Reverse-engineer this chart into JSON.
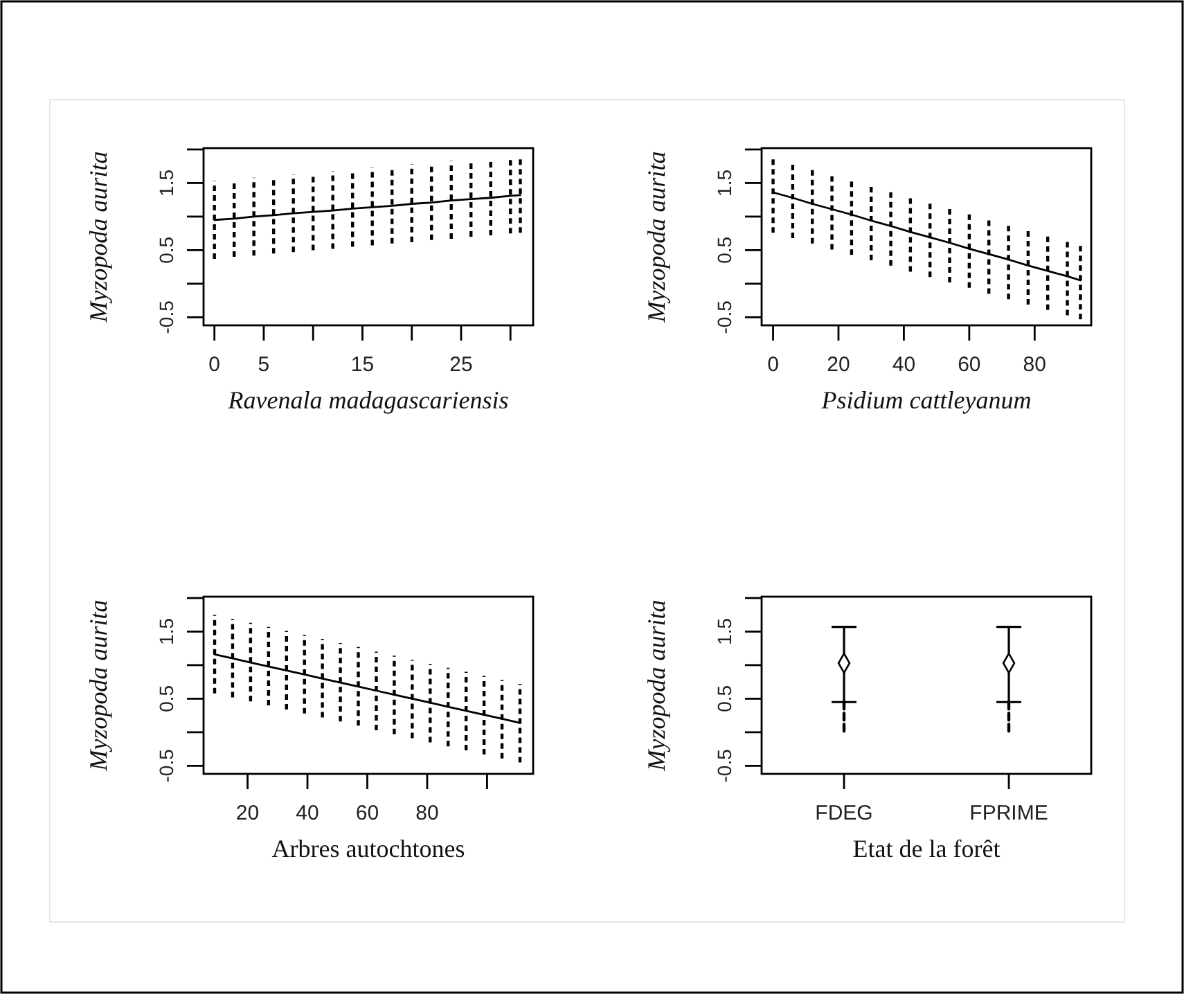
{
  "chart_data": [
    {
      "type": "line",
      "xlabel": "Ravenala madagascariensis",
      "ylabel": "Myzopoda aurita",
      "xlim": [
        -1.1,
        32.3
      ],
      "ylim": [
        -0.62,
        2.02
      ],
      "xticks": [
        0,
        5,
        {
          "value": 10,
          "label": null
        },
        15,
        {
          "value": 20,
          "label": null
        },
        25,
        {
          "value": 30,
          "label": null
        }
      ],
      "yticks": [
        -0.5,
        {
          "value": 0,
          "label": null
        },
        0.5,
        {
          "value": 1,
          "label": null
        },
        1.5,
        {
          "value": 2,
          "label": null
        }
      ],
      "x": [
        0,
        2,
        4,
        6,
        8,
        10,
        12,
        14,
        16,
        18,
        20,
        22,
        24,
        26,
        28,
        30,
        31
      ],
      "series": [
        {
          "color": "#000000",
          "values": [
            0.95,
            0.97,
            1.0,
            1.02,
            1.05,
            1.07,
            1.09,
            1.12,
            1.14,
            1.16,
            1.19,
            1.21,
            1.24,
            1.26,
            1.28,
            1.31,
            1.32
          ],
          "errors": [
            [
              0.37,
              1.53
            ],
            [
              0.4,
              1.55
            ],
            [
              0.42,
              1.58
            ],
            [
              0.45,
              1.6
            ],
            [
              0.47,
              1.63
            ],
            [
              0.5,
              1.65
            ],
            [
              0.52,
              1.68
            ],
            [
              0.55,
              1.7
            ],
            [
              0.57,
              1.73
            ],
            [
              0.6,
              1.75
            ],
            [
              0.62,
              1.78
            ],
            [
              0.65,
              1.8
            ],
            [
              0.67,
              1.83
            ],
            [
              0.7,
              1.85
            ],
            [
              0.72,
              1.87
            ],
            [
              0.75,
              1.9
            ],
            [
              0.76,
              1.91
            ]
          ]
        }
      ]
    },
    {
      "type": "line",
      "xlabel": "Psidium cattleyanum",
      "ylabel": "Myzopoda aurita",
      "xlim": [
        -3.5,
        97.3
      ],
      "ylim": [
        -0.62,
        2.02
      ],
      "xticks": [
        0,
        20,
        40,
        60,
        80
      ],
      "yticks": [
        -0.5,
        {
          "value": 0,
          "label": null
        },
        0.5,
        {
          "value": 1,
          "label": null
        },
        1.5,
        {
          "value": 2,
          "label": null
        }
      ],
      "x": [
        0,
        6,
        12,
        18,
        24,
        30,
        36,
        42,
        48,
        54,
        60,
        66,
        72,
        78,
        84,
        90,
        94
      ],
      "series": [
        {
          "color": "#000000",
          "values": [
            1.36,
            1.28,
            1.19,
            1.11,
            1.03,
            0.94,
            0.86,
            0.77,
            0.69,
            0.61,
            0.52,
            0.44,
            0.36,
            0.27,
            0.19,
            0.11,
            0.05
          ],
          "errors": [
            [
              0.76,
              1.91
            ],
            [
              0.68,
              1.83
            ],
            [
              0.6,
              1.74
            ],
            [
              0.51,
              1.66
            ],
            [
              0.43,
              1.57
            ],
            [
              0.35,
              1.49
            ],
            [
              0.27,
              1.4
            ],
            [
              0.18,
              1.32
            ],
            [
              0.1,
              1.24
            ],
            [
              0.02,
              1.15
            ],
            [
              -0.06,
              1.07
            ],
            [
              -0.15,
              0.98
            ],
            [
              -0.23,
              0.9
            ],
            [
              -0.31,
              0.81
            ],
            [
              -0.39,
              0.73
            ],
            [
              -0.47,
              0.65
            ],
            [
              -0.53,
              0.59
            ]
          ]
        }
      ]
    },
    {
      "type": "line",
      "xlabel": "Arbres autochtones",
      "ylabel": "Myzopoda aurita",
      "xlim": [
        5.3,
        115.4
      ],
      "ylim": [
        -0.62,
        2.02
      ],
      "xticks": [
        20,
        40,
        60,
        80,
        {
          "value": 100,
          "label": null
        }
      ],
      "yticks": [
        -0.5,
        {
          "value": 0,
          "label": null
        },
        0.5,
        {
          "value": 1,
          "label": null
        },
        1.5,
        {
          "value": 2,
          "label": null
        }
      ],
      "x": [
        9,
        15,
        21,
        27,
        33,
        39,
        45,
        51,
        57,
        63,
        69,
        75,
        81,
        87,
        93,
        99,
        105,
        111
      ],
      "series": [
        {
          "color": "#000000",
          "values": [
            1.16,
            1.1,
            1.04,
            0.98,
            0.92,
            0.86,
            0.8,
            0.74,
            0.68,
            0.62,
            0.56,
            0.5,
            0.44,
            0.38,
            0.32,
            0.26,
            0.2,
            0.14
          ],
          "errors": [
            [
              0.58,
              1.75
            ],
            [
              0.52,
              1.69
            ],
            [
              0.46,
              1.63
            ],
            [
              0.4,
              1.57
            ],
            [
              0.34,
              1.51
            ],
            [
              0.28,
              1.45
            ],
            [
              0.22,
              1.39
            ],
            [
              0.16,
              1.33
            ],
            [
              0.1,
              1.27
            ],
            [
              0.03,
              1.2
            ],
            [
              -0.03,
              1.14
            ],
            [
              -0.09,
              1.08
            ],
            [
              -0.15,
              1.02
            ],
            [
              -0.21,
              0.96
            ],
            [
              -0.27,
              0.9
            ],
            [
              -0.33,
              0.84
            ],
            [
              -0.39,
              0.78
            ],
            [
              -0.45,
              0.72
            ]
          ]
        }
      ]
    },
    {
      "type": "scatter",
      "xlabel": "Etat de la forêt",
      "ylabel": "Myzopoda aurita",
      "ylim": [
        -0.62,
        2.02
      ],
      "yticks": [
        -0.5,
        {
          "value": 0,
          "label": null
        },
        0.5,
        {
          "value": 1,
          "label": null
        },
        1.5,
        {
          "value": 2,
          "label": null
        }
      ],
      "categories": [
        "FDEG",
        "FPRIME"
      ],
      "series": [
        {
          "color": "#000000",
          "marker": "diamond",
          "values": [
            1.03,
            1.03
          ],
          "errors": [
            [
              0.45,
              1.57
            ],
            [
              0.45,
              1.57
            ]
          ]
        },
        {
          "type": "line",
          "color": "#000000",
          "line_style": "dashed",
          "x": [
            "FDEG",
            "FDEG"
          ],
          "values": [
            0.45,
            -0.03
          ]
        },
        {
          "type": "line",
          "color": "#000000",
          "line_style": "dashed",
          "x": [
            "FPRIME",
            "FPRIME"
          ],
          "values": [
            0.45,
            -0.03
          ]
        }
      ]
    }
  ]
}
